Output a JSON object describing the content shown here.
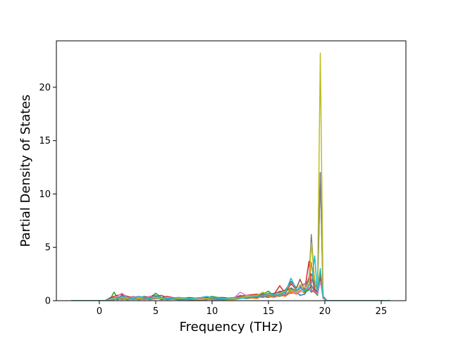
{
  "chart_data": {
    "type": "line",
    "xlabel": "Frequency (THz)",
    "ylabel": "Partial Density of States",
    "xlim": [
      -3.81,
      27.19
    ],
    "ylim": [
      0,
      24.35
    ],
    "xticks": [
      0,
      5,
      10,
      15,
      20,
      25
    ],
    "yticks": [
      0,
      5,
      10,
      15,
      20
    ],
    "x": [
      -2.5,
      0,
      0.5,
      1,
      1.3,
      1.6,
      2,
      2.5,
      3,
      3.5,
      4,
      4.5,
      5,
      5.5,
      6,
      7,
      8,
      9,
      9.5,
      10,
      11,
      12,
      12.5,
      13,
      14,
      14.5,
      15,
      15.5,
      16,
      16.5,
      17,
      17.5,
      17.8,
      18.2,
      18.6,
      18.8,
      19.1,
      19.35,
      19.6,
      19.85,
      20.2,
      25.8
    ],
    "series": [
      {
        "color": "#1f77b4",
        "values": [
          0,
          0,
          0,
          0.1,
          0.2,
          0.1,
          0.2,
          0.1,
          0.2,
          0.1,
          0.2,
          0.1,
          0.3,
          0.1,
          0.2,
          0.1,
          0.1,
          0.1,
          0.2,
          0.1,
          0.1,
          0.2,
          0.3,
          0.2,
          0.3,
          0.4,
          0.3,
          0.5,
          0.4,
          0.6,
          0.7,
          0.8,
          0.5,
          0.6,
          1.2,
          0.8,
          1.0,
          0.5,
          2.5,
          0.3,
          0,
          0
        ]
      },
      {
        "color": "#ff7f0e",
        "values": [
          0,
          0,
          0,
          0.1,
          0.1,
          0.2,
          0.1,
          0.2,
          0.1,
          0.2,
          0.1,
          0.2,
          0.2,
          0.3,
          0.1,
          0.2,
          0.1,
          0.1,
          0.1,
          0.2,
          0.1,
          0.1,
          0.2,
          0.3,
          0.2,
          0.5,
          0.4,
          0.3,
          0.5,
          0.4,
          0.8,
          0.6,
          1.0,
          0.7,
          1.5,
          3.6,
          1.2,
          0.6,
          3.0,
          0.4,
          0,
          0
        ]
      },
      {
        "color": "#2ca02c",
        "values": [
          0,
          0,
          0,
          0.2,
          0.8,
          0.3,
          0.4,
          0.3,
          0.2,
          0.3,
          0.2,
          0.3,
          0.7,
          0.3,
          0.2,
          0.2,
          0.1,
          0.2,
          0.3,
          0.4,
          0.2,
          0.2,
          0.3,
          0.4,
          0.5,
          0.6,
          0.9,
          0.4,
          0.6,
          0.8,
          1.2,
          0.9,
          1.4,
          0.8,
          1.0,
          1.5,
          0.8,
          0.5,
          2.0,
          0.3,
          0,
          0
        ]
      },
      {
        "color": "#d62728",
        "values": [
          0,
          0,
          0,
          0.3,
          0.4,
          0.5,
          0.6,
          0.4,
          0.3,
          0.4,
          0.3,
          0.4,
          0.5,
          0.3,
          0.4,
          0.2,
          0.2,
          0.1,
          0.3,
          0.2,
          0.2,
          0.3,
          0.4,
          0.5,
          0.6,
          0.5,
          0.7,
          0.6,
          1.4,
          0.7,
          1.6,
          1.0,
          1.2,
          0.9,
          3.7,
          1.0,
          0.8,
          0.7,
          2.2,
          0.2,
          0,
          0
        ]
      },
      {
        "color": "#9467bd",
        "values": [
          0,
          0,
          0,
          0.1,
          0.2,
          0.3,
          0.3,
          0.2,
          0.4,
          0.2,
          0.3,
          0.2,
          0.4,
          0.3,
          0.2,
          0.3,
          0.2,
          0.2,
          0.1,
          0.3,
          0.2,
          0.3,
          0.5,
          0.4,
          0.5,
          0.7,
          0.5,
          0.6,
          0.9,
          0.8,
          1.1,
          0.9,
          1.3,
          1.6,
          1.8,
          1.4,
          1.1,
          0.9,
          12.0,
          0.3,
          0,
          0
        ]
      },
      {
        "color": "#8c564b",
        "values": [
          0,
          0,
          0,
          0.2,
          0.3,
          0.2,
          0.5,
          0.3,
          0.2,
          0.3,
          0.4,
          0.3,
          0.4,
          0.5,
          0.3,
          0.2,
          0.3,
          0.2,
          0.2,
          0.3,
          0.3,
          0.2,
          0.4,
          0.5,
          0.4,
          0.6,
          0.5,
          0.7,
          0.8,
          1.0,
          1.8,
          1.2,
          2.0,
          1.0,
          2.2,
          2.5,
          1.0,
          0.8,
          2.5,
          0.4,
          0,
          0
        ]
      },
      {
        "color": "#e377c2",
        "values": [
          0,
          0,
          0,
          0.1,
          0.2,
          0.4,
          0.7,
          0.3,
          0.2,
          0.3,
          0.2,
          0.4,
          0.3,
          0.2,
          0.3,
          0.2,
          0.1,
          0.2,
          0.2,
          0.1,
          0.2,
          0.3,
          0.8,
          0.5,
          0.4,
          0.3,
          0.6,
          0.5,
          0.7,
          0.6,
          0.9,
          0.7,
          0.8,
          1.6,
          1.1,
          1.0,
          0.9,
          0.6,
          1.8,
          0.2,
          0,
          0
        ]
      },
      {
        "color": "#7f7f7f",
        "values": [
          0,
          0,
          0,
          0.1,
          0.1,
          0.2,
          0.2,
          0.1,
          0.2,
          0.1,
          0.2,
          0.1,
          0.2,
          0.2,
          0.1,
          0.2,
          0.1,
          0.1,
          0.1,
          0.2,
          0.1,
          0.2,
          0.3,
          0.2,
          0.4,
          0.3,
          0.5,
          0.4,
          0.6,
          0.5,
          1.0,
          0.8,
          1.2,
          1.0,
          2.0,
          6.2,
          1.5,
          1.0,
          12.0,
          0.3,
          0,
          0
        ]
      },
      {
        "color": "#bcbd22",
        "values": [
          0,
          0,
          0,
          0.1,
          0.2,
          0.2,
          0.3,
          0.2,
          0.3,
          0.2,
          0.3,
          0.2,
          0.3,
          0.2,
          0.3,
          0.2,
          0.2,
          0.1,
          0.2,
          0.3,
          0.2,
          0.2,
          0.3,
          0.4,
          0.5,
          0.8,
          0.6,
          0.5,
          0.7,
          0.9,
          1.0,
          0.8,
          1.5,
          1.2,
          1.6,
          5.4,
          2.0,
          1.0,
          23.2,
          0.3,
          0,
          0
        ]
      },
      {
        "color": "#17becf",
        "values": [
          0,
          0,
          0,
          0.2,
          0.3,
          0.2,
          0.4,
          0.3,
          0.2,
          0.4,
          0.3,
          0.2,
          0.5,
          0.3,
          0.2,
          0.3,
          0.2,
          0.3,
          0.4,
          0.3,
          0.2,
          0.3,
          0.2,
          0.3,
          0.4,
          0.5,
          0.7,
          0.5,
          0.6,
          0.8,
          2.1,
          1.0,
          1.2,
          0.9,
          1.4,
          1.6,
          4.2,
          0.8,
          3.0,
          0.3,
          0,
          0
        ]
      }
    ]
  }
}
